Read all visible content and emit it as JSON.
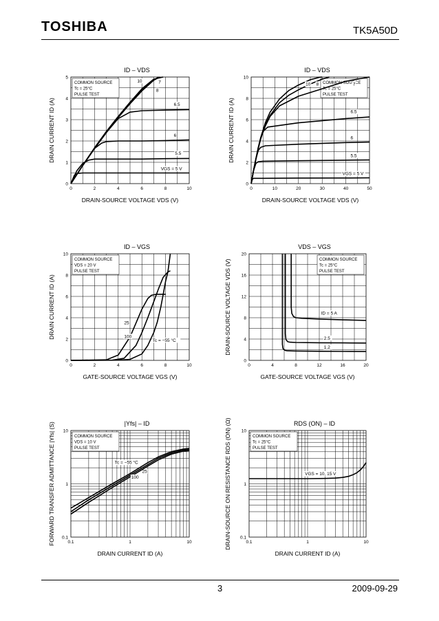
{
  "header": {
    "brand": "TOSHIBA",
    "part_number": "TK5A50D"
  },
  "footer": {
    "page_number": "3",
    "date": "2009-09-29"
  },
  "chart_data": [
    {
      "id": "c1",
      "type": "line",
      "title": "ID – VDS",
      "xlabel": "DRAIN-SOURCE VOLTAGE   VDS   (V)",
      "ylabel": "DRAIN CURRENT   ID   (A)",
      "xlim": [
        0,
        10
      ],
      "ylim": [
        0,
        5
      ],
      "xticks": [
        0,
        2,
        4,
        6,
        8,
        10
      ],
      "yticks": [
        0,
        1,
        2,
        3,
        4,
        5
      ],
      "conditions": [
        "COMMON SOURCE",
        "Tc = 25°C",
        "PULSE TEST"
      ],
      "series": [
        {
          "name": "VGS = 5 V",
          "label": "VGS = 5 V",
          "x": [
            0,
            0.3,
            0.6,
            1,
            2,
            4,
            6,
            8,
            10
          ],
          "y": [
            0,
            0.4,
            0.48,
            0.5,
            0.5,
            0.5,
            0.5,
            0.5,
            0.5
          ]
        },
        {
          "name": "5.5",
          "label": "5.5",
          "x": [
            0,
            0.5,
            1,
            1.5,
            2,
            4,
            6,
            8,
            10
          ],
          "y": [
            0,
            0.6,
            0.95,
            1.1,
            1.15,
            1.15,
            1.15,
            1.17,
            1.18
          ]
        },
        {
          "name": "6",
          "label": "6",
          "x": [
            0,
            1,
            2,
            2.6,
            3,
            4,
            6,
            8,
            10
          ],
          "y": [
            0,
            0.85,
            1.65,
            1.9,
            1.97,
            2.0,
            2.0,
            2.02,
            2.05
          ]
        },
        {
          "name": "6.5",
          "label": "6.5",
          "x": [
            0,
            1,
            2,
            3,
            4,
            5,
            6,
            8,
            10
          ],
          "y": [
            0,
            0.85,
            1.65,
            2.4,
            3.05,
            3.35,
            3.42,
            3.45,
            3.47
          ]
        },
        {
          "name": "8",
          "label": "8",
          "x": [
            0,
            1,
            2,
            3,
            4,
            5,
            6,
            7,
            7.5
          ],
          "y": [
            0,
            0.85,
            1.65,
            2.4,
            3.1,
            3.75,
            4.35,
            4.85,
            5.0
          ]
        },
        {
          "name": "10",
          "label": "10",
          "x": [
            0,
            1,
            2,
            3,
            4,
            5,
            6,
            7,
            7.8
          ],
          "y": [
            0,
            0.86,
            1.68,
            2.45,
            3.15,
            3.82,
            4.45,
            4.9,
            5.0
          ]
        },
        {
          "name": "7",
          "label": "7",
          "x": [
            0,
            1,
            2,
            3,
            4,
            5,
            6,
            7,
            7.4
          ],
          "y": [
            0,
            0.85,
            1.65,
            2.4,
            3.1,
            3.78,
            4.38,
            4.85,
            5.0
          ]
        }
      ]
    },
    {
      "id": "c2",
      "type": "line",
      "title": "ID – VDS",
      "xlabel": "DRAIN-SOURCE VOLTAGE   VDS   (V)",
      "ylabel": "DRAIN CURRENT   ID   (A)",
      "xlim": [
        0,
        50
      ],
      "ylim": [
        0,
        10
      ],
      "xticks": [
        0,
        10,
        20,
        30,
        40,
        50
      ],
      "yticks": [
        0,
        2,
        4,
        6,
        8,
        10
      ],
      "conditions": [
        "COMMON SOURCE",
        "Tc = 25°C",
        "PULSE TEST"
      ],
      "series": [
        {
          "name": "VGS = 5 V",
          "label": "VGS = 5 V",
          "x": [
            0,
            0.5,
            1,
            2,
            5,
            20,
            40,
            50
          ],
          "y": [
            0,
            0.4,
            0.5,
            0.5,
            0.5,
            0.52,
            0.53,
            0.54
          ]
        },
        {
          "name": "5.5",
          "label": "5.5",
          "x": [
            0,
            1,
            2,
            3,
            5,
            20,
            40,
            50
          ],
          "y": [
            0,
            1.2,
            1.9,
            2.05,
            2.1,
            2.15,
            2.2,
            2.22
          ]
        },
        {
          "name": "6",
          "label": "6",
          "x": [
            0,
            1,
            2,
            3,
            4,
            6,
            20,
            40,
            50
          ],
          "y": [
            0,
            1.2,
            2.3,
            3.1,
            3.4,
            3.55,
            3.7,
            3.85,
            3.9
          ]
        },
        {
          "name": "6.5",
          "label": "6.5",
          "x": [
            0,
            1,
            2,
            3,
            4,
            5,
            7,
            20,
            40,
            50
          ],
          "y": [
            0,
            1.2,
            2.3,
            3.3,
            4.2,
            4.9,
            5.3,
            5.7,
            6.1,
            6.25
          ]
        },
        {
          "name": "7",
          "label": "7",
          "x": [
            0,
            1,
            2,
            3,
            4,
            6,
            8,
            12,
            20,
            30,
            40,
            50
          ],
          "y": [
            0,
            1.2,
            2.3,
            3.3,
            4.2,
            5.4,
            6.3,
            7.3,
            8.2,
            8.9,
            9.6,
            10
          ]
        },
        {
          "name": "8",
          "label": "8",
          "x": [
            0,
            1,
            2,
            3,
            4,
            6,
            8,
            12,
            16,
            20,
            25,
            30,
            33
          ],
          "y": [
            0,
            1.2,
            2.3,
            3.3,
            4.2,
            5.5,
            6.4,
            7.6,
            8.3,
            8.8,
            9.35,
            9.8,
            10
          ]
        },
        {
          "name": "10",
          "label": "10",
          "x": [
            0,
            1,
            2,
            3,
            4,
            6,
            8,
            12,
            16,
            20,
            25,
            29,
            30
          ],
          "y": [
            0,
            1.22,
            2.35,
            3.4,
            4.3,
            5.7,
            6.7,
            7.95,
            8.75,
            9.25,
            9.75,
            9.98,
            10
          ]
        }
      ]
    },
    {
      "id": "c3",
      "type": "line",
      "title": "ID – VGS",
      "xlabel": "GATE-SOURCE VOLTAGE   VGS   (V)",
      "ylabel": "DRAIN CURRENT   ID   (A)",
      "xlim": [
        0,
        10
      ],
      "ylim": [
        0,
        10
      ],
      "xticks": [
        0,
        2,
        4,
        6,
        8,
        10
      ],
      "yticks": [
        0,
        2,
        4,
        6,
        8,
        10
      ],
      "conditions": [
        "COMMON SOURCE",
        "VDS = 20 V",
        "PULSE TEST"
      ],
      "series": [
        {
          "name": "Tc = −55 °C",
          "label": "Tc = −55 °C",
          "x": [
            0,
            4,
            5,
            6,
            6.5,
            7,
            7.3,
            7.6,
            7.8,
            8,
            8.2,
            8.4
          ],
          "y": [
            0,
            0.02,
            0.1,
            0.6,
            1.4,
            2.6,
            3.6,
            5,
            6.2,
            7.4,
            8.3,
            10
          ]
        },
        {
          "name": "25",
          "label": "25",
          "x": [
            0,
            3.5,
            4.5,
            5.5,
            6,
            6.5,
            7,
            7.4,
            7.8,
            8.2,
            8.4
          ],
          "y": [
            0,
            0.02,
            0.2,
            1.4,
            2.6,
            4,
            5.5,
            6.7,
            7.8,
            8.3,
            8.4
          ]
        },
        {
          "name": "100",
          "label": "100",
          "x": [
            0,
            3,
            4,
            5,
            5.5,
            6,
            6.5,
            6.8,
            7.2,
            7.6,
            8
          ],
          "y": [
            0,
            0.05,
            0.5,
            2.2,
            3.5,
            4.8,
            5.8,
            6.1,
            6.2,
            6.2,
            6.2
          ]
        }
      ]
    },
    {
      "id": "c4",
      "type": "line",
      "title": "VDS – VGS",
      "xlabel": "GATE-SOURCE VOLTAGE   VGS   (V)",
      "ylabel": "DRAIN-SOURCE VOLTAGE   VDS   (V)",
      "xlim": [
        0,
        20
      ],
      "ylim": [
        0,
        20
      ],
      "xticks": [
        0,
        4,
        8,
        12,
        16,
        20
      ],
      "yticks": [
        0,
        4,
        8,
        12,
        16,
        20
      ],
      "conditions": [
        "COMMON SOURCE",
        "Tc = 25°C",
        "PULSE TEST"
      ],
      "series": [
        {
          "name": "ID = 5 A",
          "label": "ID = 5 A",
          "x": [
            7.2,
            7.2,
            7.3,
            7.6,
            8,
            9,
            12,
            16,
            20
          ],
          "y": [
            20,
            10,
            8.8,
            8.2,
            8,
            7.9,
            7.75,
            7.6,
            7.5
          ]
        },
        {
          "name": "2.5",
          "label": "2.5",
          "x": [
            6.2,
            6.2,
            6.3,
            6.6,
            7,
            8,
            12,
            16,
            20
          ],
          "y": [
            20,
            5,
            3.9,
            3.5,
            3.4,
            3.35,
            3.3,
            3.28,
            3.25
          ]
        },
        {
          "name": "1.2",
          "label": "1.2",
          "x": [
            5.7,
            5.7,
            5.8,
            6.1,
            6.5,
            8,
            12,
            16,
            20
          ],
          "y": [
            20,
            3,
            2.2,
            1.9,
            1.8,
            1.75,
            1.7,
            1.68,
            1.65
          ]
        }
      ]
    },
    {
      "id": "c5",
      "type": "line",
      "title": "|Yfs| – ID",
      "xlabel": "DRAIN CURRENT   ID   (A)",
      "ylabel": "FORWARD TRANSFER ADMITTANCE |Yfs| (S)",
      "xscale": "log",
      "yscale": "log",
      "xlim": [
        0.1,
        10
      ],
      "ylim": [
        0.1,
        10
      ],
      "xticks": [
        "0.1",
        "1",
        "10"
      ],
      "yticks": [
        "0.1",
        "1",
        "10"
      ],
      "conditions": [
        "COMMON SOURCE",
        "VDS = 10 V",
        "PULSE TEST"
      ],
      "series": [
        {
          "name": "Tc = −55 °C",
          "label": "Tc = −55 °C",
          "x": [
            0.1,
            0.2,
            0.5,
            1,
            2,
            3,
            5,
            8,
            10
          ],
          "y": [
            0.35,
            0.55,
            1.0,
            1.55,
            2.5,
            3.2,
            4.0,
            4.5,
            4.6
          ]
        },
        {
          "name": "25",
          "label": "25",
          "x": [
            0.1,
            0.2,
            0.5,
            1,
            2,
            3,
            5,
            8,
            10
          ],
          "y": [
            0.3,
            0.5,
            0.92,
            1.45,
            2.3,
            3.0,
            3.8,
            4.3,
            4.4
          ]
        },
        {
          "name": "100",
          "label": "100",
          "x": [
            0.1,
            0.2,
            0.5,
            1,
            2,
            3,
            5,
            8,
            10
          ],
          "y": [
            0.27,
            0.45,
            0.85,
            1.35,
            2.15,
            2.8,
            3.6,
            4.1,
            4.2
          ]
        }
      ]
    },
    {
      "id": "c6",
      "type": "line",
      "title": "RDS (ON) – ID",
      "xlabel": "DRAIN CURRENT   ID   (A)",
      "ylabel": "DRAIN-SOURCE ON RESISTANCE RDS (ON) (Ω)",
      "xscale": "log",
      "yscale": "log",
      "xlim": [
        0.1,
        10
      ],
      "ylim": [
        0.1,
        10
      ],
      "xticks": [
        "0.1",
        "1",
        "10"
      ],
      "yticks": [
        "0.1",
        "1",
        "10"
      ],
      "conditions": [
        "COMMON SOURCE",
        "Tc = 25°C",
        "PULSE TEST"
      ],
      "series": [
        {
          "name": "VGS = 10, 15 V",
          "label": "VGS = 10, 15 V",
          "x": [
            0.1,
            0.3,
            1,
            2,
            3,
            4,
            5,
            6,
            7,
            8,
            9,
            10
          ],
          "y": [
            1.25,
            1.25,
            1.25,
            1.26,
            1.28,
            1.32,
            1.38,
            1.48,
            1.62,
            1.82,
            2.1,
            2.5
          ]
        }
      ]
    }
  ]
}
